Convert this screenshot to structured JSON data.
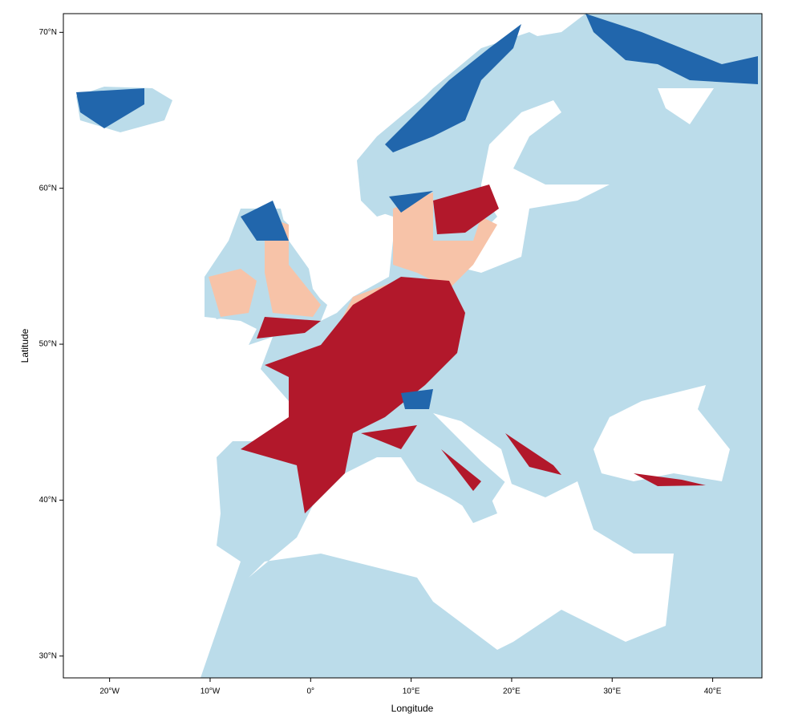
{
  "chart_data": {
    "type": "map",
    "xlabel": "Longitude",
    "ylabel": "Latitude",
    "xlim": [
      -24.6,
      44.9
    ],
    "ylim": [
      28.6,
      71.2
    ],
    "xticks": [
      {
        "value": -20,
        "label": "20°W"
      },
      {
        "value": -10,
        "label": "10°W"
      },
      {
        "value": 0,
        "label": "0°"
      },
      {
        "value": 10,
        "label": "10°E"
      },
      {
        "value": 20,
        "label": "20°E"
      },
      {
        "value": 30,
        "label": "30°E"
      },
      {
        "value": 40,
        "label": "40°E"
      }
    ],
    "yticks": [
      {
        "value": 30,
        "label": "30°N"
      },
      {
        "value": 40,
        "label": "40°N"
      },
      {
        "value": 50,
        "label": "50°N"
      },
      {
        "value": 60,
        "label": "60°N"
      },
      {
        "value": 70,
        "label": "70°N"
      }
    ]
  }
}
